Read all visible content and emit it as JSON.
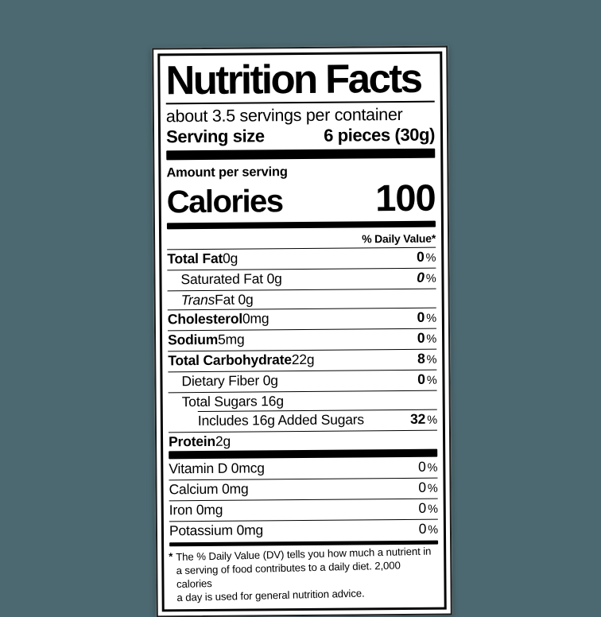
{
  "colors": {
    "background": "#4c6870",
    "card": "#ffffff",
    "ink": "#000000"
  },
  "label": {
    "title": "Nutrition Facts",
    "servings_per_container": "about 3.5 servings per container",
    "serving_size": {
      "label": "Serving size",
      "value": "6 pieces (30g)"
    },
    "amount_per_serving": "Amount per serving",
    "calories": {
      "label": "Calories",
      "value": "100"
    },
    "daily_value_header": "% Daily Value*",
    "nutrients": [
      {
        "name_bold": "Total Fat",
        "name_rest": " 0g",
        "dv": "0",
        "pct": "%"
      },
      {
        "name_rest": "Saturated Fat 0g",
        "dv": "0",
        "pct": "%"
      },
      {
        "name_italic": "Trans",
        "name_rest": " Fat 0g"
      },
      {
        "name_bold": "Cholesterol",
        "name_rest": " 0mg",
        "dv": "0",
        "pct": "%"
      },
      {
        "name_bold": "Sodium",
        "name_rest": " 5mg",
        "dv": "0",
        "pct": "%"
      },
      {
        "name_bold": "Total Carbohydrate",
        "name_rest": " 22g",
        "dv": "8",
        "pct": "%"
      },
      {
        "name_rest": "Dietary Fiber 0g",
        "dv": "0",
        "pct": "%"
      },
      {
        "name_rest": "Total Sugars 16g"
      },
      {
        "name_rest": "Includes 16g Added Sugars",
        "dv": "32",
        "pct": "%"
      },
      {
        "name_bold": "Protein",
        "name_rest": " 2g"
      }
    ],
    "micronutrients": [
      {
        "name_rest": "Vitamin D 0mcg",
        "dv": "0",
        "pct": "%"
      },
      {
        "name_rest": "Calcium 0mg",
        "dv": "0",
        "pct": "%"
      },
      {
        "name_rest": "Iron 0mg",
        "dv": "0",
        "pct": "%"
      },
      {
        "name_rest": "Potassium 0mg",
        "dv": "0",
        "pct": "%"
      }
    ],
    "footnote_marker": "*",
    "footnote_lines": [
      "The % Daily Value (DV) tells you how much a nutrient in",
      "a serving of food contributes to a daily diet. 2,000 calories",
      "a day is used for general nutrition advice."
    ]
  }
}
